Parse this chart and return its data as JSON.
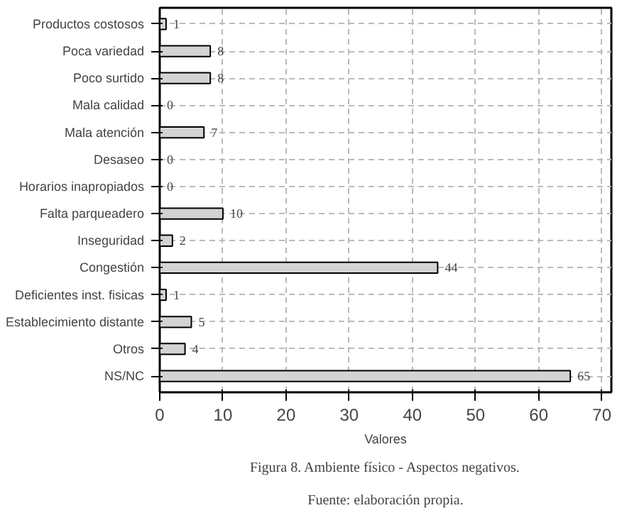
{
  "chart_data": {
    "type": "bar",
    "orientation": "horizontal",
    "xlabel": "Valores",
    "categories": [
      "Productos costosos",
      "Poca variedad",
      "Poco surtido",
      "Mala calidad",
      "Mala atención",
      "Desaseo",
      "Horarios inapropiados",
      "Falta parqueadero",
      "Inseguridad",
      "Congestión",
      "Deficientes inst. fisicas",
      "Establecimiento distante",
      "Otros",
      "NS/NC"
    ],
    "values": [
      1,
      8,
      8,
      0,
      7,
      0,
      0,
      10,
      2,
      44,
      1,
      5,
      4,
      65
    ],
    "color": "#d3d3d3",
    "data_labels": true,
    "xlim": [
      0,
      71.5
    ],
    "xticks": [
      0,
      10,
      20,
      30,
      40,
      50,
      60,
      70
    ],
    "grid": true,
    "annotations": [
      "Figura 8. Ambiente físico - Aspectos negativos.",
      "Fuente: elaboración propia."
    ]
  }
}
